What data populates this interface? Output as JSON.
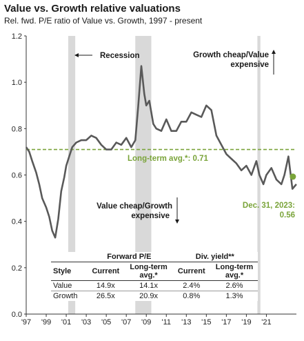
{
  "title": "Value vs. Growth relative valuations",
  "subtitle": "Rel. fwd. P/E ratio of Value vs. Growth, 1997 - present",
  "colors": {
    "series": "#595959",
    "average": "#7aa43a",
    "recession": "#d9d9d9",
    "point": "#7aa43a"
  },
  "annotations": {
    "recession": "Recession",
    "growth_cheap_1": "Growth cheap/Value",
    "growth_cheap_2": "expensive",
    "value_cheap_1": "Value cheap/Growth",
    "value_cheap_2": "expensive",
    "avg_label": "Long-term avg.*:  0.71",
    "current_1": "Dec. 31, 2023:",
    "current_2": "0.56"
  },
  "table": {
    "group_pe": "Forward P/E",
    "group_div": "Div. yield**",
    "col_style": "Style",
    "col_current": "Current",
    "col_lt_avg": "Long-term avg.*",
    "col_current2": "Current",
    "col_lt_avg2": "Long-term avg.*",
    "rows": [
      {
        "style": "Value",
        "pe_current": "14.9x",
        "pe_avg": "14.1x",
        "dy_current": "2.4%",
        "dy_avg": "2.6%"
      },
      {
        "style": "Growth",
        "pe_current": "26.5x",
        "pe_avg": "20.9x",
        "dy_current": "0.8%",
        "dy_avg": "1.3%"
      }
    ]
  },
  "chart_data": {
    "type": "line",
    "title": "Value vs. Growth relative valuations",
    "subtitle": "Rel. fwd. P/E ratio of Value vs. Growth, 1997 - present",
    "xlabel": "",
    "ylabel": "",
    "xlim": [
      1997.0,
      2024.0
    ],
    "ylim": [
      0.0,
      1.2
    ],
    "y_ticks": [
      "0.0",
      "0.2",
      "0.4",
      "0.6",
      "0.8",
      "1.0",
      "1.2"
    ],
    "x_ticks": [
      "'97",
      "'99",
      "'01",
      "'03",
      "'05",
      "'07",
      "'09",
      "'11",
      "'13",
      "'15",
      "'17",
      "'19",
      "'21"
    ],
    "x_tick_years": [
      1997,
      1999,
      2001,
      2003,
      2005,
      2007,
      2009,
      2011,
      2013,
      2015,
      2017,
      2019,
      2021
    ],
    "grid": false,
    "long_term_avg": 0.71,
    "recessions": [
      [
        2001.2,
        2001.9
      ],
      [
        2007.9,
        2009.5
      ],
      [
        2020.1,
        2020.4
      ]
    ],
    "current_point": {
      "x": 2023.99,
      "y": 0.56
    },
    "series": [
      {
        "x": [
          1997.0,
          1997.3,
          1997.6,
          1998.0,
          1998.3,
          1998.6,
          1999.0,
          1999.3,
          1999.6,
          1999.9,
          2000.2,
          2000.5,
          2000.8,
          2001.0,
          2001.3,
          2001.6,
          2002.0,
          2002.5,
          2003.0,
          2003.5,
          2004.0,
          2004.5,
          2005.0,
          2005.5,
          2006.0,
          2006.5,
          2007.0,
          2007.5,
          2007.9,
          2008.2,
          2008.5,
          2008.8,
          2009.0,
          2009.3,
          2009.7,
          2010.0,
          2010.5,
          2011.0,
          2011.5,
          2012.0,
          2012.5,
          2013.0,
          2013.5,
          2014.0,
          2014.5,
          2015.0,
          2015.5,
          2016.0,
          2016.5,
          2017.0,
          2017.5,
          2018.0,
          2018.5,
          2019.0,
          2019.5,
          2020.0,
          2020.3,
          2020.7,
          2021.0,
          2021.5,
          2022.0,
          2022.5,
          2022.8,
          2023.2,
          2023.6,
          2023.99
        ],
        "values": [
          0.72,
          0.7,
          0.66,
          0.61,
          0.56,
          0.5,
          0.46,
          0.42,
          0.36,
          0.33,
          0.41,
          0.53,
          0.59,
          0.64,
          0.68,
          0.72,
          0.74,
          0.75,
          0.75,
          0.77,
          0.76,
          0.73,
          0.71,
          0.71,
          0.74,
          0.73,
          0.76,
          0.72,
          0.75,
          0.9,
          1.07,
          0.95,
          0.9,
          0.92,
          0.82,
          0.8,
          0.79,
          0.84,
          0.79,
          0.79,
          0.83,
          0.83,
          0.87,
          0.86,
          0.85,
          0.9,
          0.88,
          0.77,
          0.73,
          0.69,
          0.67,
          0.65,
          0.62,
          0.64,
          0.6,
          0.66,
          0.6,
          0.56,
          0.6,
          0.63,
          0.58,
          0.56,
          0.6,
          0.68,
          0.54,
          0.56
        ]
      }
    ]
  }
}
